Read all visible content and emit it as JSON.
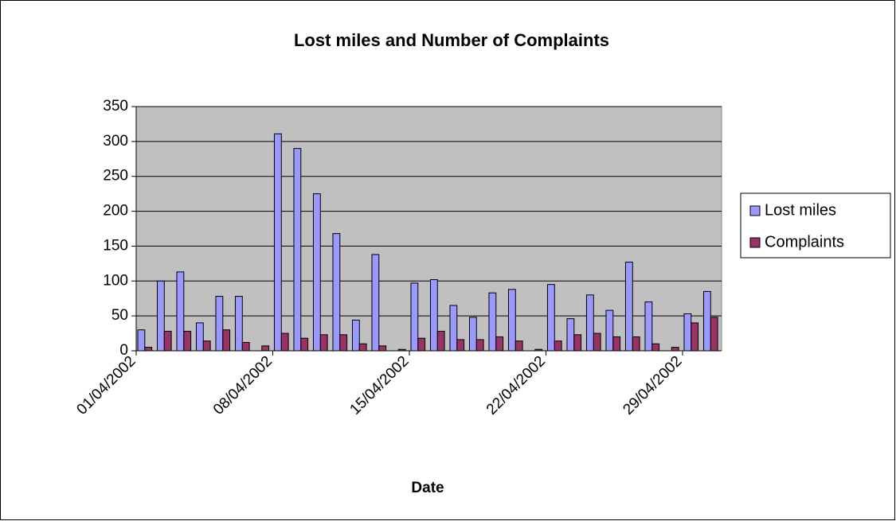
{
  "chart_data": {
    "type": "bar",
    "title": "Lost miles and Number of Complaints",
    "x_label": "Date",
    "categories": [
      "01/04/2002",
      null,
      null,
      null,
      null,
      null,
      null,
      "08/04/2002",
      null,
      null,
      null,
      null,
      null,
      null,
      "15/04/2002",
      null,
      null,
      null,
      null,
      null,
      null,
      "22/04/2002",
      null,
      null,
      null,
      null,
      null,
      null,
      "29/04/2002",
      null
    ],
    "series": [
      {
        "name": "Lost miles",
        "color": "#9999ff",
        "values": [
          30,
          100,
          113,
          40,
          78,
          78,
          0,
          311,
          290,
          225,
          168,
          44,
          138,
          0,
          97,
          102,
          65,
          48,
          83,
          88,
          0,
          95,
          46,
          80,
          58,
          127,
          70,
          0,
          53,
          85
        ]
      },
      {
        "name": "Complaints",
        "color": "#993366",
        "values": [
          5,
          28,
          28,
          14,
          30,
          12,
          7,
          25,
          18,
          23,
          23,
          10,
          7,
          2,
          18,
          28,
          16,
          16,
          20,
          14,
          2,
          14,
          23,
          25,
          20,
          20,
          10,
          5,
          40,
          48
        ]
      }
    ],
    "ylim": [
      0,
      350
    ],
    "yticks": [
      0,
      50,
      100,
      150,
      200,
      250,
      300,
      350
    ],
    "grid": true,
    "legend": "right"
  }
}
